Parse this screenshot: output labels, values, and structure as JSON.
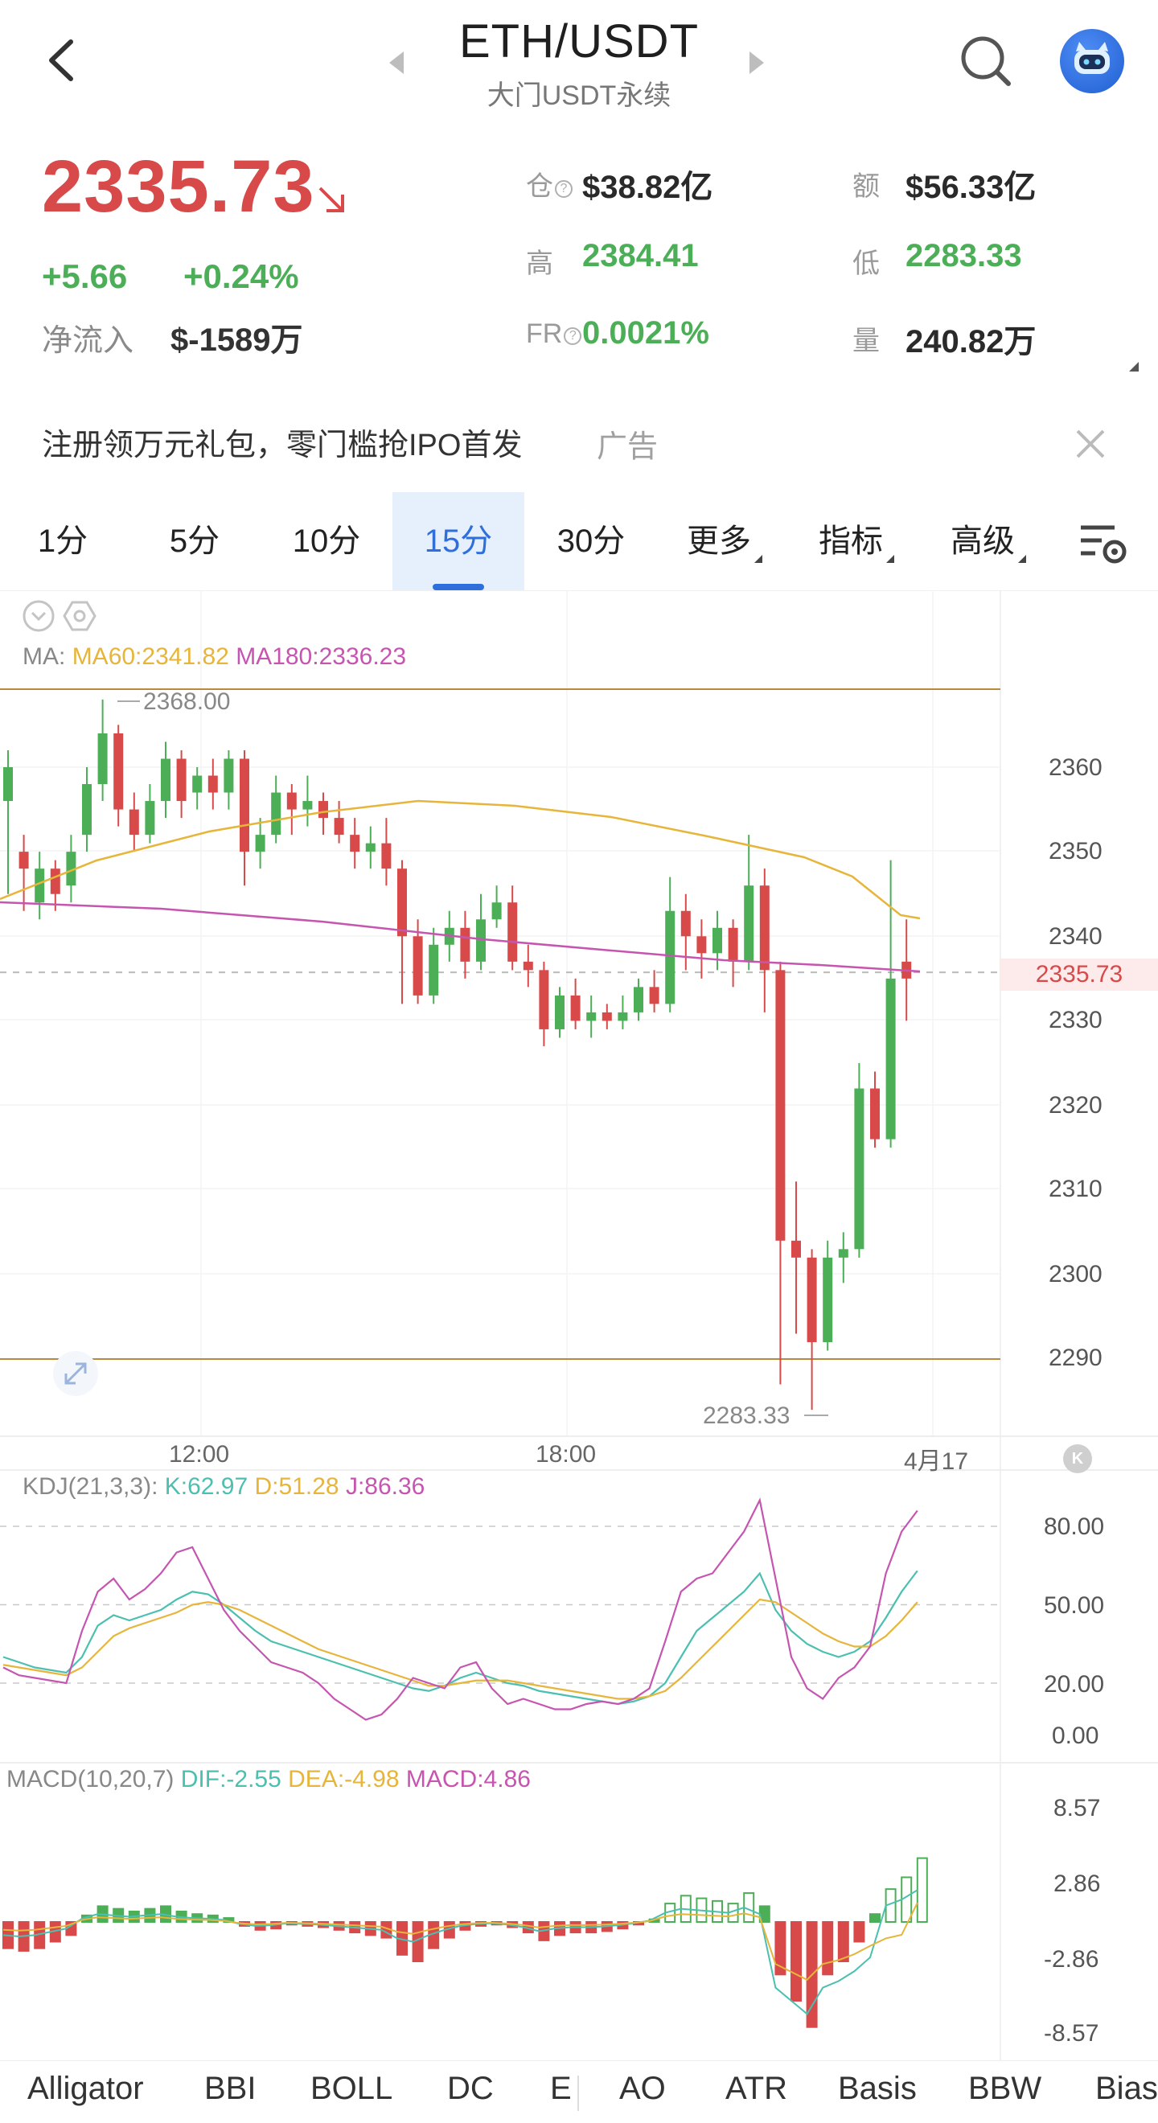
{
  "header": {
    "title": "ETH/USDT",
    "subtitle": "大门USDT永续"
  },
  "ticker": {
    "price": "2335.73",
    "change": "+5.66",
    "change_pct": "+0.24%",
    "inflow_label": "净流入",
    "inflow_value": "$-1589万",
    "stats": [
      {
        "label": "仓",
        "help": true,
        "value": "$38.82亿",
        "color": "dark"
      },
      {
        "label": "额",
        "help": false,
        "value": "$56.33亿",
        "color": "dark"
      },
      {
        "label": "高",
        "help": false,
        "value": "2384.41",
        "color": "green"
      },
      {
        "label": "低",
        "help": false,
        "value": "2283.33",
        "color": "green"
      },
      {
        "label": "FR",
        "help": true,
        "value": "0.0021%",
        "color": "green"
      },
      {
        "label": "量",
        "help": false,
        "value": "240.82万",
        "color": "dark"
      }
    ]
  },
  "ad": {
    "text": "注册领万元礼包，零门槛抢IPO首发",
    "tag": "广告"
  },
  "tabs": [
    {
      "label": "1分",
      "dropdown": false,
      "active": false
    },
    {
      "label": "5分",
      "dropdown": false,
      "active": false
    },
    {
      "label": "10分",
      "dropdown": false,
      "active": false
    },
    {
      "label": "15分",
      "dropdown": false,
      "active": true
    },
    {
      "label": "30分",
      "dropdown": false,
      "active": false
    },
    {
      "label": "更多",
      "dropdown": true,
      "active": false
    },
    {
      "label": "指标",
      "dropdown": true,
      "active": false
    },
    {
      "label": "高级",
      "dropdown": true,
      "active": false
    }
  ],
  "main_chart": {
    "ma_prefix": "MA:",
    "ma60": "MA60:2341.82",
    "ma180": "MA180:2336.23",
    "high_label": "2368.00",
    "low_label": "2283.33",
    "current_tag": "2335.73",
    "y_ticks": [
      "2360",
      "2350",
      "2340",
      "2330",
      "2320",
      "2310",
      "2300",
      "2290"
    ],
    "x_ticks": [
      "12:00",
      "18:00",
      "4月17"
    ]
  },
  "kdj": {
    "prefix": "KDJ(21,3,3):",
    "k": "K:62.97",
    "d": "D:51.28",
    "j": "J:86.36",
    "y_ticks": [
      "80.00",
      "50.00",
      "20.00",
      "0.00"
    ]
  },
  "macd": {
    "prefix": "MACD(10,20,7)",
    "dif": "DIF:-2.55",
    "dea": "DEA:-4.98",
    "macd": "MACD:4.86",
    "y_ticks": [
      "8.57",
      "2.86",
      "-2.86",
      "-8.57"
    ]
  },
  "indicator_tabs": [
    "Alligator",
    "BBI",
    "BOLL",
    "DC",
    "E",
    "AO",
    "ATR",
    "Basis",
    "BBW",
    "Bias"
  ],
  "colors": {
    "up": "#4caf57",
    "down": "#d84a4a",
    "ma60": "#e6b53a",
    "ma180": "#c655b0",
    "accent": "#2f6fdc"
  },
  "chart_data": {
    "type": "candlestick",
    "ylim": [
      2283.33,
      2368.0
    ],
    "series": [
      {
        "name": "MA60",
        "value": 2341.82
      },
      {
        "name": "MA180",
        "value": 2336.23
      }
    ],
    "candles": [
      [
        2356,
        2360,
        2345,
        2362
      ],
      [
        2350,
        2348,
        2343,
        2352
      ],
      [
        2344,
        2348,
        2342,
        2350
      ],
      [
        2348,
        2345,
        2343,
        2349
      ],
      [
        2346,
        2350,
        2344,
        2352
      ],
      [
        2352,
        2358,
        2350,
        2360
      ],
      [
        2358,
        2364,
        2356,
        2368
      ],
      [
        2364,
        2355,
        2353,
        2365
      ],
      [
        2355,
        2352,
        2350,
        2357
      ],
      [
        2352,
        2356,
        2351,
        2358
      ],
      [
        2356,
        2361,
        2354,
        2363
      ],
      [
        2361,
        2356,
        2354,
        2362
      ],
      [
        2357,
        2359,
        2355,
        2360
      ],
      [
        2359,
        2357,
        2355,
        2361
      ],
      [
        2357,
        2361,
        2355,
        2362
      ],
      [
        2361,
        2350,
        2346,
        2362
      ],
      [
        2350,
        2352,
        2348,
        2354
      ],
      [
        2352,
        2357,
        2351,
        2359
      ],
      [
        2357,
        2355,
        2352,
        2358
      ],
      [
        2355,
        2356,
        2353,
        2359
      ],
      [
        2356,
        2354,
        2352,
        2357
      ],
      [
        2354,
        2352,
        2351,
        2356
      ],
      [
        2352,
        2350,
        2348,
        2354
      ],
      [
        2350,
        2351,
        2348,
        2353
      ],
      [
        2351,
        2348,
        2346,
        2354
      ],
      [
        2348,
        2340,
        2332,
        2349
      ],
      [
        2340,
        2333,
        2332,
        2342
      ],
      [
        2333,
        2339,
        2332,
        2341
      ],
      [
        2339,
        2341,
        2337,
        2343
      ],
      [
        2341,
        2337,
        2335,
        2343
      ],
      [
        2337,
        2342,
        2336,
        2345
      ],
      [
        2342,
        2344,
        2341,
        2346
      ],
      [
        2344,
        2337,
        2336,
        2346
      ],
      [
        2337,
        2336,
        2334,
        2339
      ],
      [
        2336,
        2329,
        2327,
        2337
      ],
      [
        2329,
        2333,
        2328,
        2334
      ],
      [
        2333,
        2330,
        2329,
        2335
      ],
      [
        2330,
        2331,
        2328,
        2333
      ],
      [
        2331,
        2330,
        2329,
        2332
      ],
      [
        2330,
        2331,
        2329,
        2333
      ],
      [
        2331,
        2334,
        2330,
        2335
      ],
      [
        2334,
        2332,
        2331,
        2336
      ],
      [
        2332,
        2343,
        2331,
        2347
      ],
      [
        2343,
        2340,
        2336,
        2345
      ],
      [
        2340,
        2338,
        2335,
        2342
      ],
      [
        2338,
        2341,
        2336,
        2343
      ],
      [
        2341,
        2337,
        2334,
        2342
      ],
      [
        2337,
        2346,
        2336,
        2352
      ],
      [
        2346,
        2336,
        2331,
        2348
      ],
      [
        2336,
        2304,
        2287,
        2337
      ],
      [
        2304,
        2302,
        2293,
        2311
      ],
      [
        2302,
        2292,
        2284,
        2303
      ],
      [
        2292,
        2302,
        2291,
        2304
      ],
      [
        2302,
        2303,
        2299,
        2305
      ],
      [
        2303,
        2322,
        2302,
        2325
      ],
      [
        2322,
        2316,
        2315,
        2324
      ],
      [
        2316,
        2335,
        2315,
        2349
      ],
      [
        2337,
        2335,
        2330,
        2342
      ]
    ]
  }
}
